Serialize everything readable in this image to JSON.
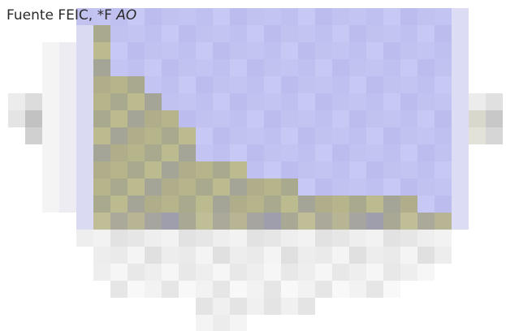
{
  "caption": {
    "source_text": "Fuente FEIC, *F",
    "tail_text": "AO"
  },
  "image": {
    "description_icon": "pixelated-mosaic-image"
  }
}
